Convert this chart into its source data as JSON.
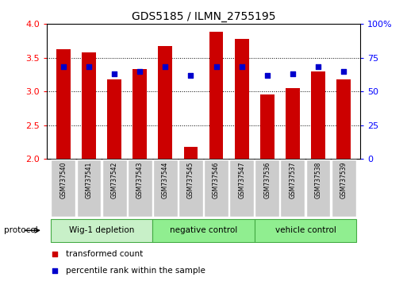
{
  "title": "GDS5185 / ILMN_2755195",
  "samples": [
    "GSM737540",
    "GSM737541",
    "GSM737542",
    "GSM737543",
    "GSM737544",
    "GSM737545",
    "GSM737546",
    "GSM737547",
    "GSM737536",
    "GSM737537",
    "GSM737538",
    "GSM737539"
  ],
  "red_values": [
    3.63,
    3.58,
    3.18,
    3.33,
    3.67,
    2.18,
    3.88,
    3.78,
    2.95,
    3.05,
    3.3,
    3.18
  ],
  "blue_percentiles": [
    68,
    68,
    63,
    65,
    68,
    62,
    68,
    68,
    62,
    63,
    68,
    65
  ],
  "groups": [
    {
      "label": "Wig-1 depletion",
      "start": 0,
      "end": 4
    },
    {
      "label": "negative control",
      "start": 4,
      "end": 8
    },
    {
      "label": "vehicle control",
      "start": 8,
      "end": 12
    }
  ],
  "group_colors": [
    "#c8f0c8",
    "#90ee90",
    "#90ee90"
  ],
  "ylim_left": [
    2.0,
    4.0
  ],
  "ylim_right": [
    0,
    100
  ],
  "yticks_left": [
    2.0,
    2.5,
    3.0,
    3.5,
    4.0
  ],
  "yticks_right": [
    0,
    25,
    50,
    75,
    100
  ],
  "bar_color": "#cc0000",
  "dot_color": "#0000cc",
  "bar_width": 0.55,
  "background_color": "#ffffff",
  "legend_red_label": "transformed count",
  "legend_blue_label": "percentile rank within the sample",
  "protocol_label": "protocol",
  "sample_box_color": "#cccccc",
  "sample_box_edge": "#ffffff"
}
